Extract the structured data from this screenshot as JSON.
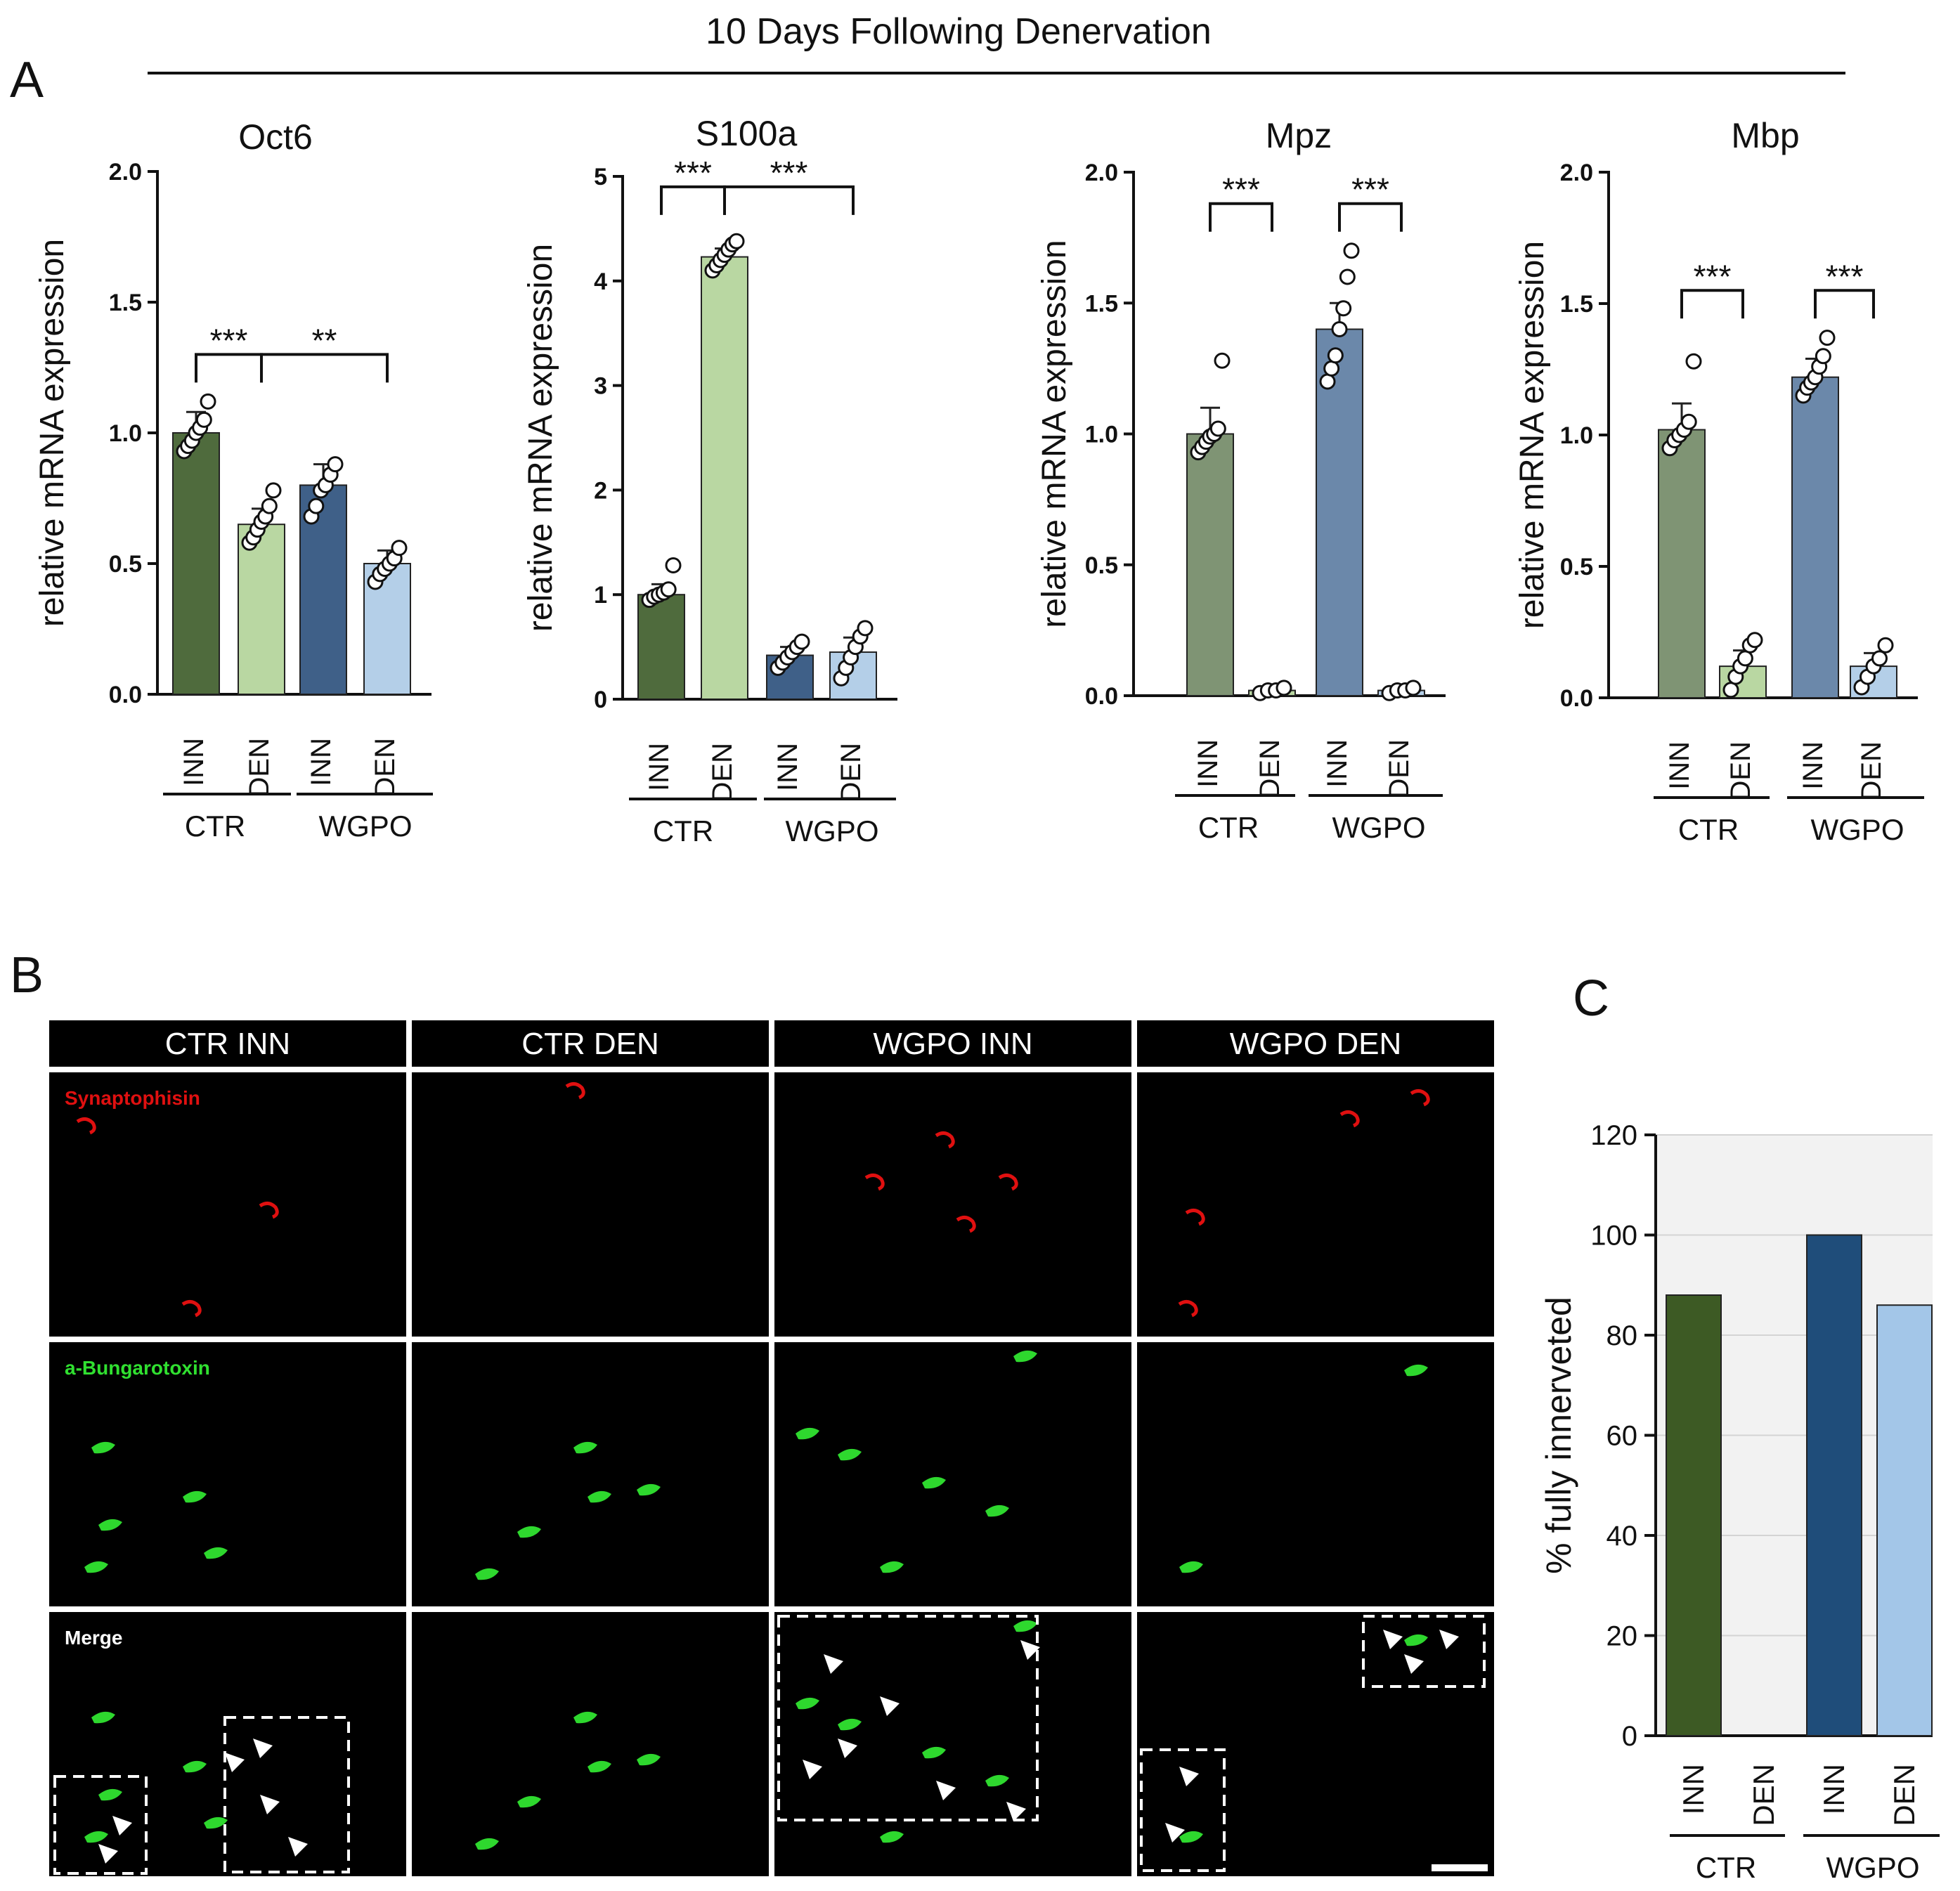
{
  "figure_title": "10 Days Following Denervation",
  "panel_letters": {
    "a": "A",
    "b": "B",
    "c": "C"
  },
  "axis": {
    "ylabel": "relative mRNA expression"
  },
  "group_labels": {
    "ctr": "CTR",
    "wgpo": "WGPO"
  },
  "condition_labels": {
    "inn": "INN",
    "den": "DEN"
  },
  "colors": {
    "ctr_inn": "#4f6b3d",
    "ctr_den": "#b9d7a2",
    "wgpo_inn": "#3f6088",
    "wgpo_den": "#b4cfe8",
    "ctr_inn_light": "#7f9474",
    "wgpo_inn_light": "#6b88aa",
    "c_ctr_inn": "#3d5a24",
    "c_wgpo_inn": "#1f4d7a",
    "c_wgpo_den": "#a3c6e8"
  },
  "chart_data": [
    {
      "type": "bar",
      "title": "Oct6",
      "ylabel": "relative mRNA expression",
      "ylim": [
        0,
        2.0
      ],
      "yticks": [
        "0.0",
        "0.5",
        "1.0",
        "1.5",
        "2.0"
      ],
      "categories": [
        "CTR INN",
        "CTR DEN",
        "WGPO INN",
        "WGPO DEN"
      ],
      "values": [
        1.0,
        0.65,
        0.8,
        0.5
      ],
      "error": [
        0.08,
        0.06,
        0.08,
        0.05
      ],
      "points": [
        [
          0.93,
          0.95,
          0.97,
          1.0,
          1.02,
          1.05,
          1.12
        ],
        [
          0.58,
          0.6,
          0.63,
          0.66,
          0.68,
          0.72,
          0.78
        ],
        [
          0.68,
          0.72,
          0.78,
          0.8,
          0.84,
          0.88
        ],
        [
          0.43,
          0.46,
          0.48,
          0.5,
          0.52,
          0.56
        ]
      ],
      "significance": [
        {
          "from": 0,
          "to": 1,
          "label": "***",
          "y": 1.3
        },
        {
          "from": 1,
          "to": 3,
          "label": "**",
          "y": 1.3
        }
      ]
    },
    {
      "type": "bar",
      "title": "S100a",
      "ylabel": "relative mRNA expression",
      "ylim": [
        0,
        5
      ],
      "yticks": [
        "0",
        "1",
        "2",
        "3",
        "4",
        "5"
      ],
      "categories": [
        "CTR INN",
        "CTR DEN",
        "WGPO INN",
        "WGPO DEN"
      ],
      "values": [
        1.0,
        4.23,
        0.42,
        0.45
      ],
      "error": [
        0.1,
        0.08,
        0.08,
        0.14
      ],
      "points": [
        [
          0.95,
          0.98,
          1.0,
          1.02,
          1.05,
          1.28
        ],
        [
          4.1,
          4.15,
          4.2,
          4.25,
          4.3,
          4.35,
          4.38
        ],
        [
          0.3,
          0.35,
          0.4,
          0.45,
          0.5,
          0.55
        ],
        [
          0.2,
          0.3,
          0.4,
          0.5,
          0.6,
          0.68
        ]
      ],
      "significance": [
        {
          "from": 0,
          "to": 1,
          "label": "***",
          "y": 4.9
        },
        {
          "from": 1,
          "to": 3,
          "label": "***",
          "y": 4.9
        }
      ]
    },
    {
      "type": "bar",
      "title": "Mpz",
      "ylabel": "relative mRNA expression",
      "ylim": [
        0,
        2.0
      ],
      "yticks": [
        "0.0",
        "0.5",
        "1.0",
        "1.5",
        "2.0"
      ],
      "categories": [
        "CTR INN",
        "CTR DEN",
        "WGPO INN",
        "WGPO DEN"
      ],
      "values": [
        1.0,
        0.02,
        1.4,
        0.02
      ],
      "error": [
        0.1,
        0.01,
        0.1,
        0.01
      ],
      "points": [
        [
          0.93,
          0.95,
          0.97,
          0.99,
          1.0,
          1.02,
          1.28
        ],
        [
          0.01,
          0.02,
          0.02,
          0.03
        ],
        [
          1.2,
          1.25,
          1.3,
          1.4,
          1.48,
          1.6,
          1.7
        ],
        [
          0.01,
          0.02,
          0.02,
          0.03
        ]
      ],
      "significance": [
        {
          "from": 0,
          "to": 1,
          "label": "***",
          "y": 1.88
        },
        {
          "from": 2,
          "to": 3,
          "label": "***",
          "y": 1.88
        }
      ]
    },
    {
      "type": "bar",
      "title": "Mbp",
      "ylabel": "relative mRNA expression",
      "ylim": [
        0,
        2.0
      ],
      "yticks": [
        "0.0",
        "0.5",
        "1.0",
        "1.5",
        "2.0"
      ],
      "categories": [
        "CTR INN",
        "CTR DEN",
        "WGPO INN",
        "WGPO DEN"
      ],
      "values": [
        1.02,
        0.12,
        1.22,
        0.12
      ],
      "error": [
        0.1,
        0.06,
        0.07,
        0.05
      ],
      "points": [
        [
          0.95,
          0.98,
          1.0,
          1.02,
          1.05,
          1.28
        ],
        [
          0.03,
          0.08,
          0.12,
          0.15,
          0.2,
          0.22
        ],
        [
          1.15,
          1.18,
          1.2,
          1.22,
          1.26,
          1.3,
          1.37
        ],
        [
          0.04,
          0.08,
          0.12,
          0.15,
          0.2
        ]
      ],
      "significance": [
        {
          "from": 0,
          "to": 1,
          "label": "***",
          "y": 1.55
        },
        {
          "from": 2,
          "to": 3,
          "label": "***",
          "y": 1.55
        }
      ]
    },
    {
      "type": "bar",
      "title": "",
      "ylabel": "% fully innerveted",
      "ylim": [
        0,
        120
      ],
      "yticks": [
        "0",
        "20",
        "40",
        "60",
        "80",
        "100",
        "120"
      ],
      "categories": [
        "CTR INN",
        "CTR DEN",
        "WGPO INN",
        "WGPO DEN"
      ],
      "values": [
        88,
        0,
        100,
        86
      ]
    }
  ],
  "micrographs": {
    "columns": [
      "CTR INN",
      "CTR DEN",
      "WGPO INN",
      "WGPO DEN"
    ],
    "row_labels": {
      "red": "Synaptophisin",
      "green": "a-Bungarotoxin",
      "merge": "Merge"
    }
  }
}
